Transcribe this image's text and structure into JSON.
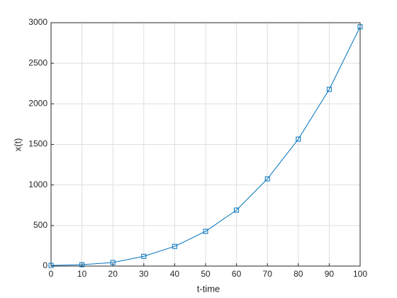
{
  "chart_data": {
    "type": "line",
    "xlabel": "t-time",
    "ylabel": "x(t)",
    "x": [
      0,
      10,
      20,
      30,
      40,
      50,
      60,
      70,
      80,
      90,
      100
    ],
    "series": [
      {
        "color": "#0072bd",
        "values": [
          8,
          17,
          44,
          120,
          243,
          428,
          690,
          1075,
          1565,
          2178,
          2950
        ]
      }
    ],
    "xlim": [
      0,
      100
    ],
    "xticks": [
      0,
      10,
      20,
      30,
      40,
      50,
      60,
      70,
      80,
      90,
      100
    ],
    "ylim": [
      0,
      3000
    ],
    "yticks": [
      0,
      500,
      1000,
      1500,
      2000,
      2500,
      3000
    ],
    "grid": true,
    "marker": "square"
  }
}
